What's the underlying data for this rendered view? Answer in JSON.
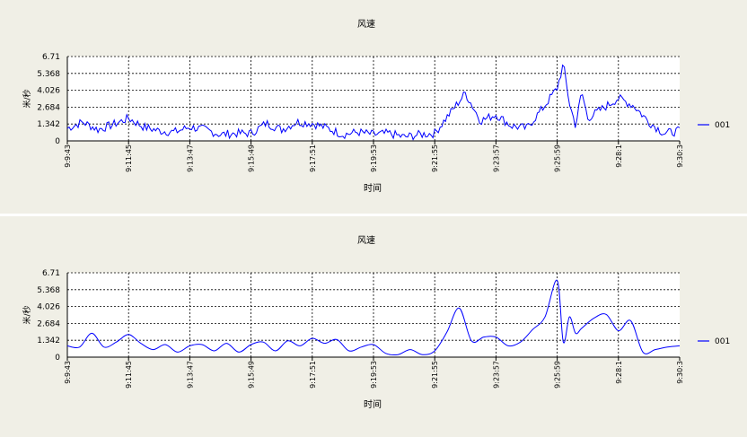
{
  "chart_data": [
    {
      "type": "line",
      "title": "风速",
      "xlabel": "时间",
      "ylabel": "米/秒",
      "yticks": [
        "0",
        "1.342",
        "2.684",
        "4.026",
        "5.368",
        "6.71"
      ],
      "ylim": [
        0,
        6.71
      ],
      "xticks": [
        "9:9:43",
        "9:11:45",
        "9:13:47",
        "9:15:49",
        "9:17:51",
        "9:19:53",
        "9:21:55",
        "9:23:57",
        "9:25:59",
        "9:28:1",
        "9:30:3"
      ],
      "grid": true,
      "legend_position": "right",
      "series": [
        {
          "name": "001",
          "color": "#0000ff",
          "style": "raw",
          "x_tick_index": [
            0,
            0.25,
            0.5,
            0.75,
            1,
            1.25,
            1.5,
            1.75,
            2,
            2.25,
            2.5,
            2.75,
            3,
            3.25,
            3.5,
            3.75,
            4,
            4.25,
            4.5,
            4.75,
            5,
            5.25,
            5.5,
            5.75,
            6,
            6.25,
            6.5,
            6.75,
            7,
            7.25,
            7.5,
            7.75,
            8,
            8.1,
            8.2,
            8.3,
            8.4,
            8.5,
            8.75,
            9,
            9.25,
            9.5,
            9.75,
            10
          ],
          "values": [
            1.0,
            1.5,
            0.9,
            1.3,
            1.8,
            1.1,
            0.8,
            0.7,
            1.1,
            0.9,
            0.5,
            0.6,
            0.6,
            1.4,
            0.9,
            1.5,
            1.4,
            1.0,
            0.5,
            0.7,
            0.5,
            0.6,
            0.3,
            0.5,
            0.6,
            2.2,
            3.8,
            1.6,
            2.1,
            1.2,
            1.0,
            2.5,
            4.2,
            6.1,
            3.0,
            1.2,
            3.9,
            1.8,
            2.6,
            3.4,
            2.8,
            1.5,
            0.6,
            0.8
          ]
        }
      ]
    },
    {
      "type": "line",
      "title": "风速",
      "xlabel": "时间",
      "ylabel": "米/秒",
      "yticks": [
        "0",
        "1.342",
        "2.684",
        "4.026",
        "5.368",
        "6.71"
      ],
      "ylim": [
        0,
        6.71
      ],
      "xticks": [
        "9:9:43",
        "9:11:45",
        "9:13:47",
        "9:15:49",
        "9:17:51",
        "9:19:53",
        "9:21:55",
        "9:23:57",
        "9:25:59",
        "9:28:1",
        "9:30:3"
      ],
      "grid": true,
      "legend_position": "right",
      "series": [
        {
          "name": "001",
          "color": "#0000ff",
          "style": "smoothed",
          "x_tick_index": [
            0,
            0.2,
            0.4,
            0.6,
            0.8,
            1,
            1.2,
            1.4,
            1.6,
            1.8,
            2,
            2.2,
            2.4,
            2.6,
            2.8,
            3,
            3.2,
            3.4,
            3.6,
            3.8,
            4,
            4.2,
            4.4,
            4.6,
            4.8,
            5,
            5.2,
            5.4,
            5.6,
            5.8,
            6,
            6.2,
            6.4,
            6.6,
            6.8,
            7,
            7.2,
            7.4,
            7.6,
            7.8,
            8,
            8.1,
            8.2,
            8.3,
            8.4,
            8.6,
            8.8,
            9,
            9.2,
            9.4,
            9.6,
            9.8,
            10
          ],
          "values": [
            0.9,
            0.8,
            1.9,
            0.8,
            1.2,
            1.8,
            1.1,
            0.6,
            1.0,
            0.4,
            0.9,
            1.0,
            0.5,
            1.1,
            0.4,
            1.0,
            1.2,
            0.5,
            1.3,
            0.9,
            1.5,
            1.1,
            1.4,
            0.5,
            0.8,
            1.0,
            0.3,
            0.2,
            0.6,
            0.2,
            0.5,
            2.0,
            3.9,
            1.3,
            1.6,
            1.6,
            0.9,
            1.2,
            2.2,
            3.2,
            6.1,
            1.2,
            3.2,
            1.9,
            2.3,
            3.1,
            3.4,
            2.1,
            2.9,
            0.4,
            0.6,
            0.8,
            0.9
          ]
        }
      ]
    }
  ]
}
